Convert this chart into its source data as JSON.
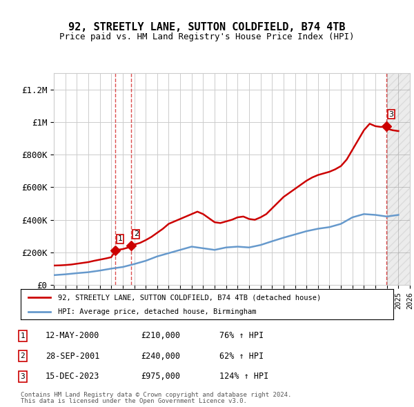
{
  "title": "92, STREETLY LANE, SUTTON COLDFIELD, B74 4TB",
  "subtitle": "Price paid vs. HM Land Registry's House Price Index (HPI)",
  "legend_line1": "92, STREETLY LANE, SUTTON COLDFIELD, B74 4TB (detached house)",
  "legend_line2": "HPI: Average price, detached house, Birmingham",
  "footnote1": "Contains HM Land Registry data © Crown copyright and database right 2024.",
  "footnote2": "This data is licensed under the Open Government Licence v3.0.",
  "transactions": [
    {
      "num": 1,
      "date": "12-MAY-2000",
      "price": 210000,
      "year": 2000.37,
      "pct": "76%"
    },
    {
      "num": 2,
      "date": "28-SEP-2001",
      "price": 240000,
      "year": 2001.75,
      "pct": "62%"
    },
    {
      "num": 3,
      "date": "15-DEC-2023",
      "price": 975000,
      "year": 2023.96,
      "pct": "124%"
    }
  ],
  "hpi_years": [
    1995,
    1996,
    1997,
    1998,
    1999,
    2000,
    2001,
    2002,
    2003,
    2004,
    2005,
    2006,
    2007,
    2008,
    2009,
    2010,
    2011,
    2012,
    2013,
    2014,
    2015,
    2016,
    2017,
    2018,
    2019,
    2020,
    2021,
    2022,
    2023,
    2024,
    2025
  ],
  "hpi_values": [
    60000,
    65000,
    72000,
    78000,
    88000,
    100000,
    110000,
    128000,
    148000,
    175000,
    195000,
    215000,
    235000,
    225000,
    215000,
    230000,
    235000,
    230000,
    245000,
    268000,
    290000,
    310000,
    330000,
    345000,
    355000,
    375000,
    415000,
    435000,
    430000,
    420000,
    430000
  ],
  "price_paid_years": [
    1995,
    1995.5,
    1996,
    1996.5,
    1997,
    1997.5,
    1998,
    1998.5,
    1999,
    1999.5,
    2000,
    2000.37,
    2000.5,
    2001,
    2001.5,
    2001.75,
    2002,
    2002.5,
    2003,
    2003.5,
    2004,
    2004.5,
    2005,
    2005.5,
    2006,
    2006.5,
    2007,
    2007.5,
    2008,
    2008.5,
    2009,
    2009.5,
    2010,
    2010.5,
    2011,
    2011.5,
    2012,
    2012.5,
    2013,
    2013.5,
    2014,
    2014.5,
    2015,
    2015.5,
    2016,
    2016.5,
    2017,
    2017.5,
    2018,
    2018.5,
    2019,
    2019.5,
    2020,
    2020.5,
    2021,
    2021.5,
    2022,
    2022.5,
    2023,
    2023.5,
    2023.96,
    2024,
    2024.5,
    2025
  ],
  "price_paid_values": [
    119000,
    120000,
    122000,
    125000,
    130000,
    135000,
    140000,
    148000,
    155000,
    162000,
    170000,
    210000,
    215000,
    220000,
    230000,
    240000,
    248000,
    258000,
    275000,
    295000,
    320000,
    345000,
    375000,
    390000,
    405000,
    420000,
    435000,
    450000,
    435000,
    410000,
    385000,
    380000,
    390000,
    400000,
    415000,
    420000,
    405000,
    400000,
    415000,
    435000,
    470000,
    505000,
    540000,
    565000,
    590000,
    615000,
    640000,
    660000,
    675000,
    685000,
    695000,
    710000,
    730000,
    770000,
    830000,
    890000,
    950000,
    990000,
    975000,
    970000,
    975000,
    960000,
    950000,
    945000
  ],
  "ylim": [
    0,
    1300000
  ],
  "xlim": [
    1995,
    2026
  ],
  "ytick_vals": [
    0,
    200000,
    400000,
    600000,
    800000,
    1000000,
    1200000
  ],
  "ytick_labels": [
    "£0",
    "£200K",
    "£400K",
    "£600K",
    "£800K",
    "£1M",
    "£1.2M"
  ],
  "xtick_vals": [
    1995,
    1996,
    1997,
    1998,
    1999,
    2000,
    2001,
    2002,
    2003,
    2004,
    2005,
    2006,
    2007,
    2008,
    2009,
    2010,
    2011,
    2012,
    2013,
    2014,
    2015,
    2016,
    2017,
    2018,
    2019,
    2020,
    2021,
    2022,
    2023,
    2024,
    2025,
    2026
  ],
  "red_color": "#cc0000",
  "blue_color": "#6699cc",
  "hatch_color": "#cccccc",
  "grid_color": "#cccccc",
  "bg_color": "#ffffff"
}
